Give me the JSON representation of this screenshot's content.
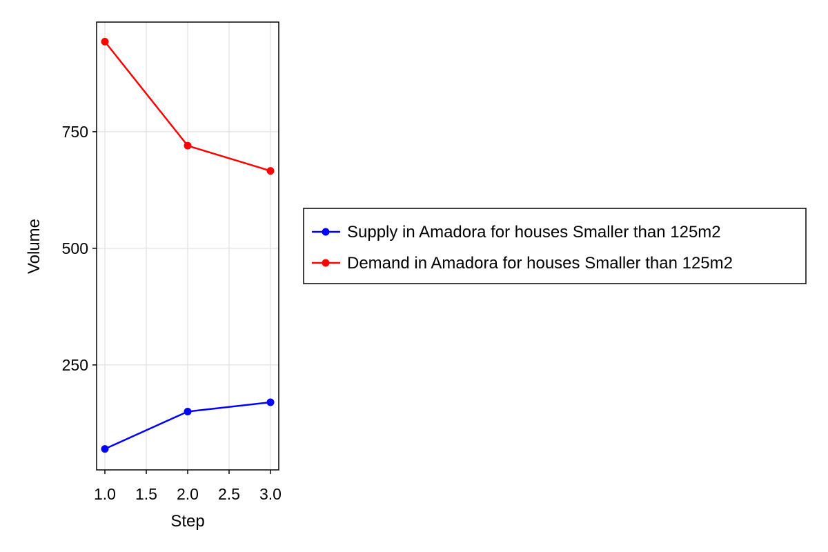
{
  "chart_data": {
    "type": "line",
    "title": "",
    "xlabel": "Step",
    "ylabel": "Volume",
    "x": [
      1.0,
      2.0,
      3.0
    ],
    "xlim": [
      0.9,
      3.1
    ],
    "ylim": [
      25,
      985
    ],
    "xticks": [
      1.0,
      1.5,
      2.0,
      2.5,
      3.0
    ],
    "xtick_labels": [
      "1.0",
      "1.5",
      "2.0",
      "2.5",
      "3.0"
    ],
    "yticks": [
      250,
      500,
      750
    ],
    "ytick_labels": [
      "250",
      "500",
      "750"
    ],
    "grid": true,
    "legend_position": "right",
    "series": [
      {
        "name": "Supply in Amadora for houses Smaller than 125m2",
        "color": "#0000ff",
        "values": [
          70,
          150,
          170
        ]
      },
      {
        "name": "Demand in Amadora for houses Smaller than 125m2",
        "color": "#ff0000",
        "values": [
          943,
          720,
          666
        ]
      }
    ]
  }
}
